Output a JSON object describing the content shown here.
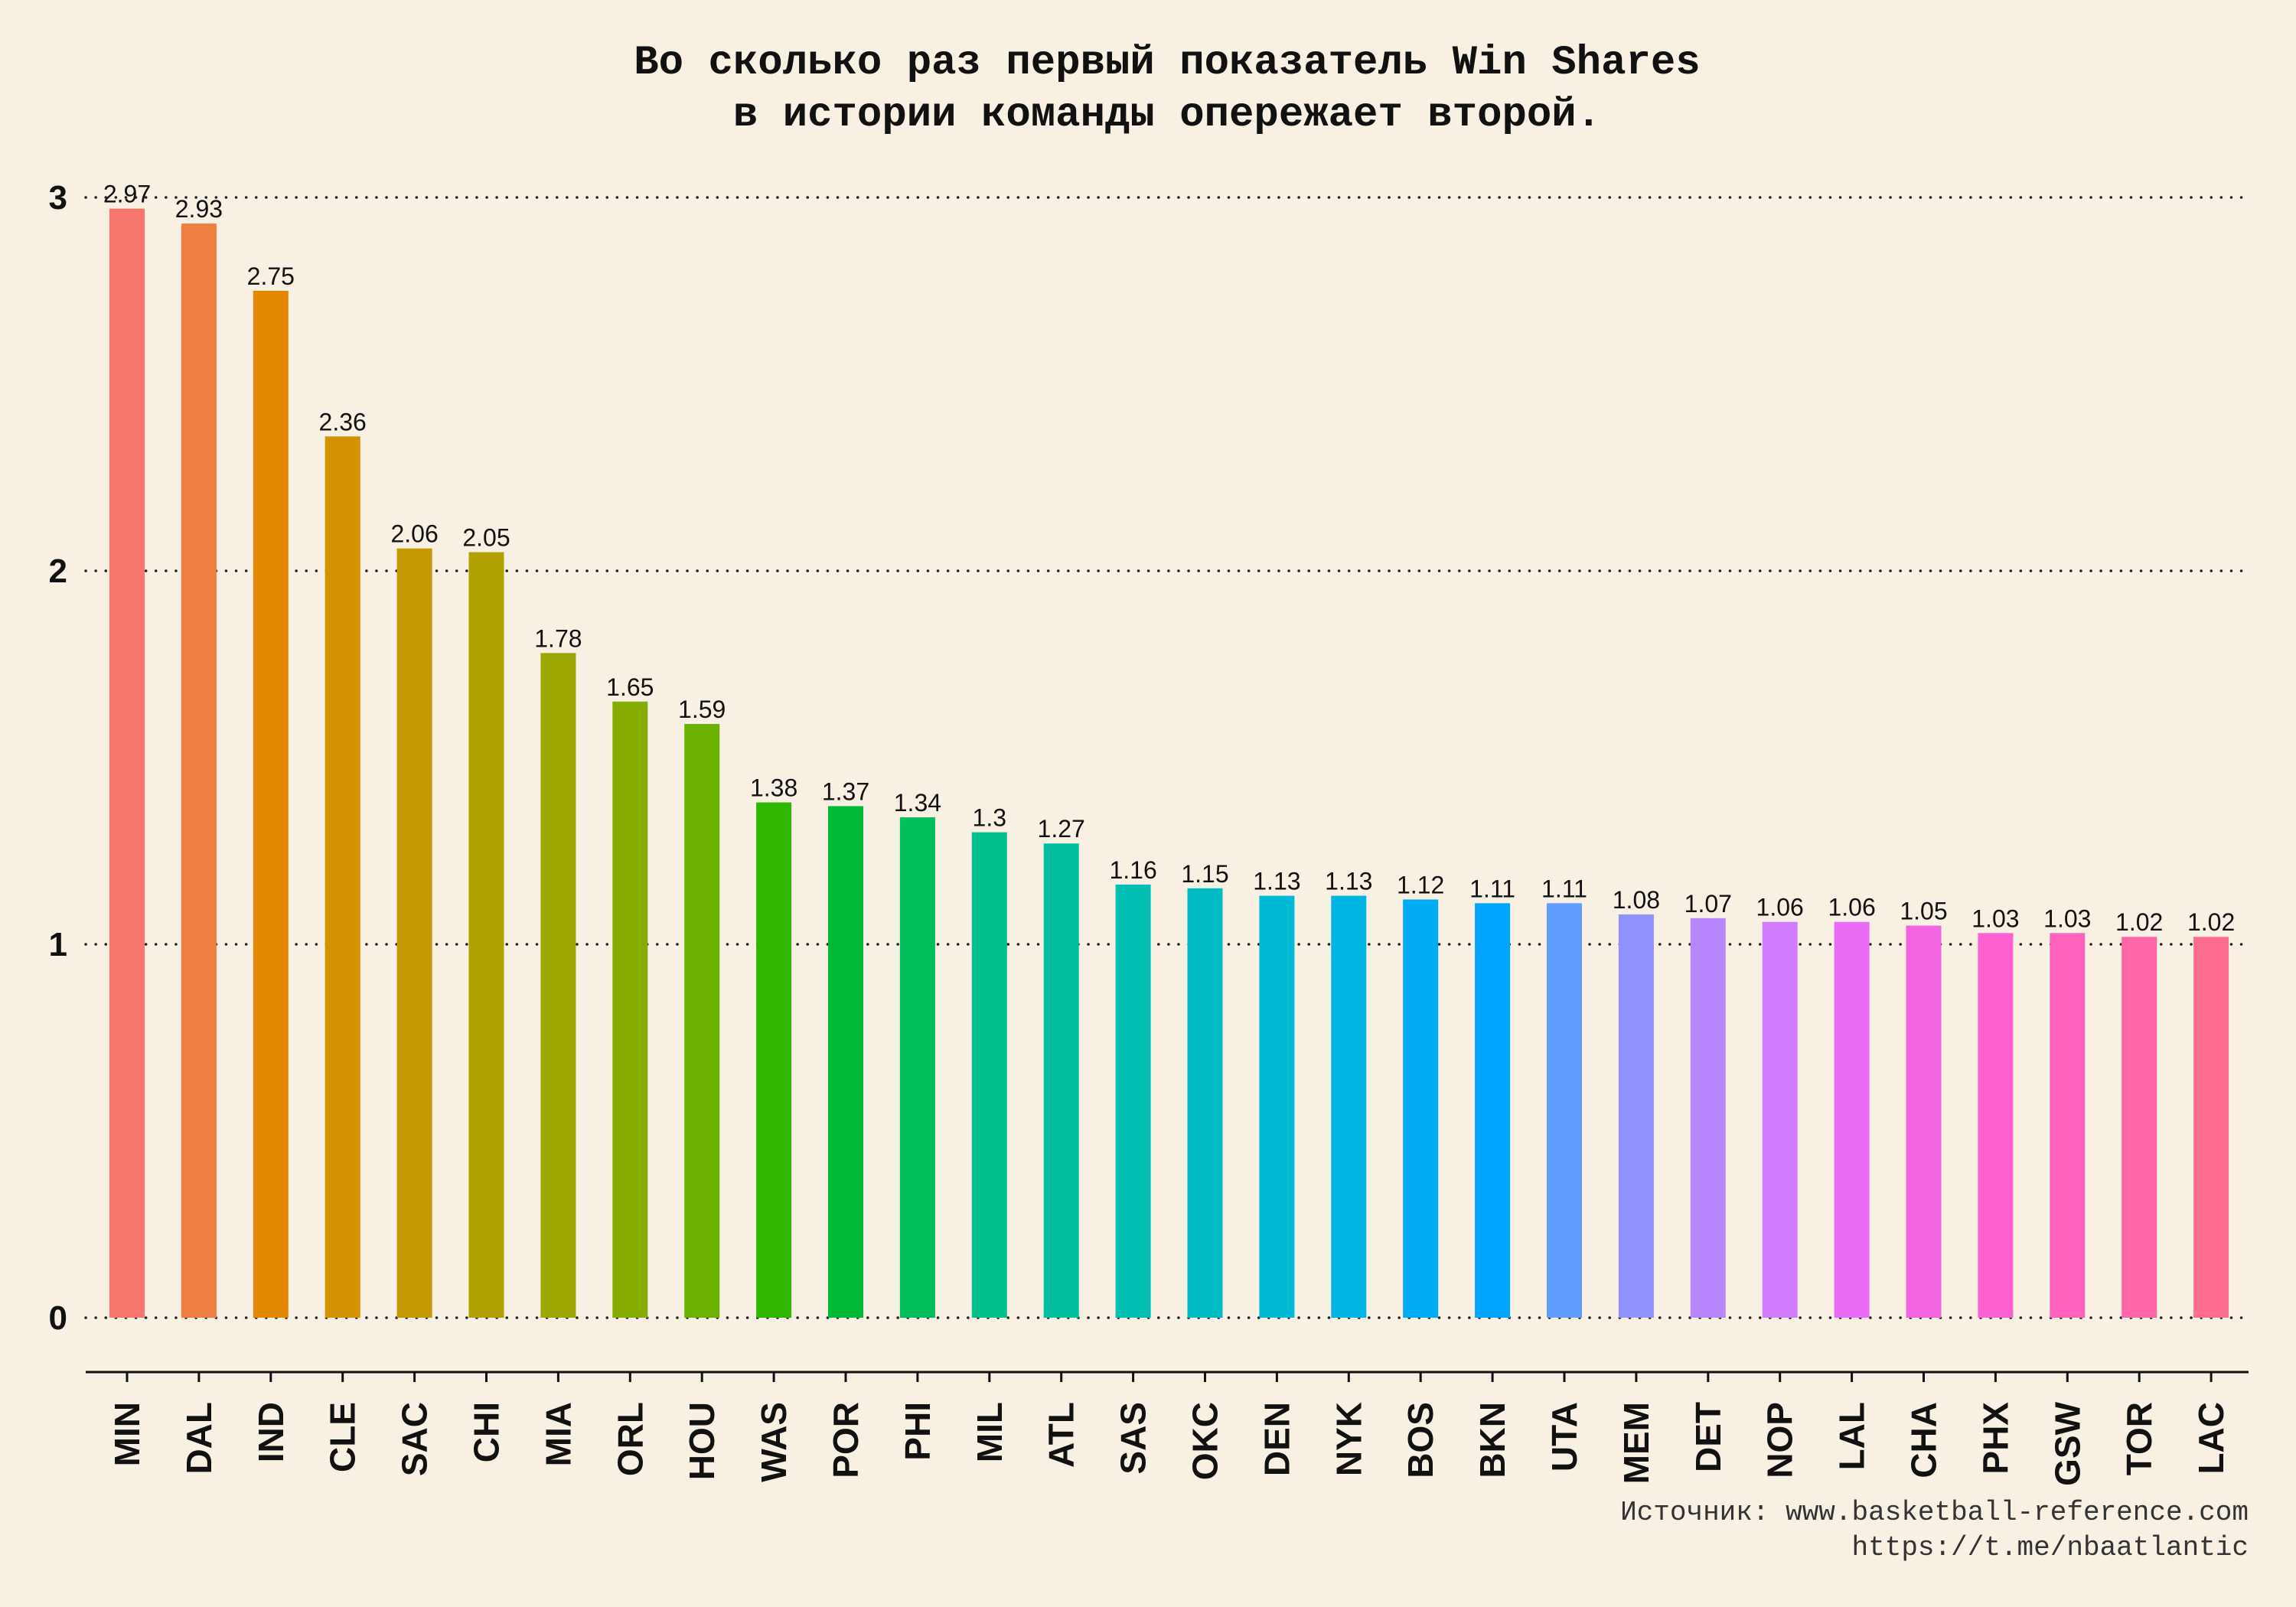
{
  "chart_data": {
    "type": "bar",
    "title": [
      "Во сколько раз первый показатель Win Shares",
      "в истории команды опережает второй."
    ],
    "xlabel": "",
    "ylabel": "",
    "ylim": [
      0,
      3.05
    ],
    "yticks": [
      0,
      1,
      2,
      3
    ],
    "grid": "horizontal-dotted",
    "categories": [
      "MIN",
      "DAL",
      "IND",
      "CLE",
      "SAC",
      "CHI",
      "MIA",
      "ORL",
      "HOU",
      "WAS",
      "POR",
      "PHI",
      "MIL",
      "ATL",
      "SAS",
      "OKC",
      "DEN",
      "NYK",
      "BOS",
      "BKN",
      "UTA",
      "MEM",
      "DET",
      "NOP",
      "LAL",
      "CHA",
      "PHX",
      "GSW",
      "TOR",
      "LAC"
    ],
    "values": [
      2.97,
      2.93,
      2.75,
      2.36,
      2.06,
      2.05,
      1.78,
      1.65,
      1.59,
      1.38,
      1.37,
      1.34,
      1.3,
      1.27,
      1.16,
      1.15,
      1.13,
      1.13,
      1.12,
      1.11,
      1.11,
      1.08,
      1.07,
      1.06,
      1.06,
      1.05,
      1.03,
      1.03,
      1.02,
      1.02
    ],
    "value_labels": [
      "2.97",
      "2.93",
      "2.75",
      "2.36",
      "2.06",
      "2.05",
      "1.78",
      "1.65",
      "1.59",
      "1.38",
      "1.37",
      "1.34",
      "1.3",
      "1.27",
      "1.16",
      "1.15",
      "1.13",
      "1.13",
      "1.12",
      "1.11",
      "1.11",
      "1.08",
      "1.07",
      "1.06",
      "1.06",
      "1.05",
      "1.03",
      "1.03",
      "1.02",
      "1.02"
    ],
    "colors": [
      "#F8766D",
      "#EE8044",
      "#E38900",
      "#D39200",
      "#C49A00",
      "#B0A000",
      "#9CA700",
      "#86AC00",
      "#6BB100",
      "#31B700",
      "#00BA38",
      "#00BD5C",
      "#00C08B",
      "#00C0A0",
      "#00BFB3",
      "#00BCC4",
      "#00B9D4",
      "#00B5E2",
      "#00ADF5",
      "#00A5FF",
      "#619CFF",
      "#8F91FF",
      "#B685FF",
      "#D17BFF",
      "#E76BF3",
      "#F264E0",
      "#FD61D1",
      "#FF62BC",
      "#FF66A8",
      "#FF6C91"
    ]
  },
  "source": {
    "line1": "Источник: www.basketball-reference.com",
    "line2": "https://t.me/nbaatlantic"
  }
}
